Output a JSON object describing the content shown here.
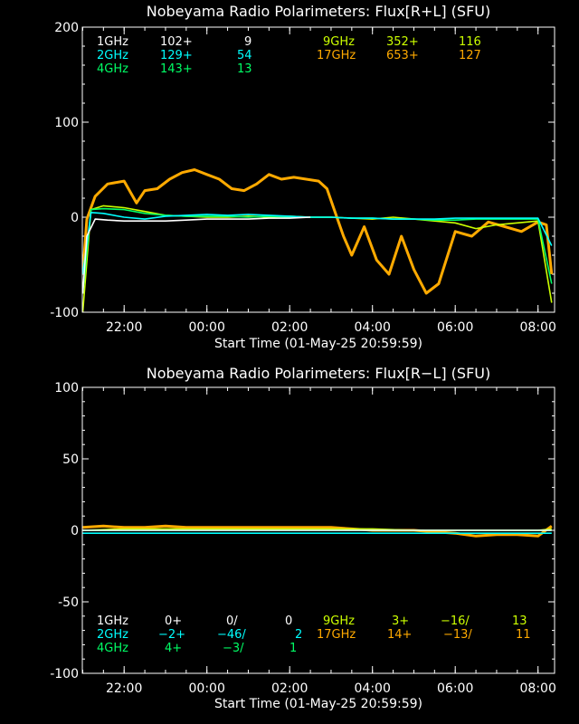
{
  "colors": {
    "1GHz": "#ffffff",
    "2GHz": "#00ffff",
    "4GHz": "#00ff66",
    "9GHz": "#ccff00",
    "17GHz": "#ffaa00",
    "axes": "#ffffff",
    "background": "#000000"
  },
  "chart_data": [
    {
      "type": "line",
      "title": "Nobeyama Radio Polarimeters: Flux[R+L] (SFU)",
      "xlabel": "Start Time (01-May-25 20:59:59)",
      "ylabel": "",
      "x_unit": "hours since 00:00 01-May-25",
      "xlim": [
        20.99,
        32.4
      ],
      "ylim": [
        -100,
        200
      ],
      "yticks": [
        "-100",
        "0",
        "100",
        "200"
      ],
      "yticks_values": [
        -100,
        0,
        100,
        200
      ],
      "xticks": [
        "22:00",
        "00:00",
        "02:00",
        "04:00",
        "06:00",
        "08:00"
      ],
      "xticks_values": [
        22,
        24,
        26,
        28,
        30,
        32
      ],
      "legend_rows": [
        {
          "band": "1GHz",
          "base": "102+",
          "value": "9"
        },
        {
          "band": "2GHz",
          "base": "129+",
          "value": "54"
        },
        {
          "band": "4GHz",
          "base": "143+",
          "value": "13"
        },
        {
          "band": "9GHz",
          "base": "352+",
          "value": "116"
        },
        {
          "band": "17GHz",
          "base": "653+",
          "value": "127"
        }
      ],
      "series": [
        {
          "name": "17GHz",
          "x": [
            21.0,
            21.1,
            21.3,
            21.6,
            22.0,
            22.3,
            22.5,
            22.8,
            23.1,
            23.4,
            23.7,
            24.0,
            24.3,
            24.6,
            24.9,
            25.2,
            25.5,
            25.8,
            26.1,
            26.4,
            26.7,
            26.9,
            27.1,
            27.3,
            27.5,
            27.8,
            28.1,
            28.4,
            28.7,
            29.0,
            29.3,
            29.6,
            30.0,
            30.4,
            30.8,
            31.2,
            31.6,
            32.0,
            32.2,
            32.33
          ],
          "y": [
            -60,
            -2,
            22,
            35,
            38,
            15,
            28,
            30,
            40,
            47,
            50,
            45,
            40,
            30,
            28,
            35,
            45,
            40,
            42,
            40,
            38,
            30,
            5,
            -20,
            -40,
            -10,
            -45,
            -60,
            -20,
            -55,
            -80,
            -70,
            -15,
            -20,
            -5,
            -10,
            -15,
            -5,
            -8,
            -60
          ]
        },
        {
          "name": "9GHz",
          "x": [
            21.0,
            21.2,
            21.5,
            22.0,
            22.5,
            23.0,
            23.5,
            24.0,
            24.5,
            25.0,
            25.5,
            26.0,
            26.5,
            27.0,
            27.5,
            28.0,
            28.5,
            29.0,
            29.5,
            30.0,
            30.5,
            31.0,
            31.5,
            32.0,
            32.33
          ],
          "y": [
            -100,
            8,
            12,
            10,
            6,
            2,
            1,
            0,
            0,
            1,
            0,
            1,
            0,
            0,
            -1,
            -2,
            0,
            -2,
            -4,
            -6,
            -12,
            -8,
            -6,
            -4,
            -90
          ]
        },
        {
          "name": "4GHz",
          "x": [
            21.0,
            21.2,
            21.5,
            22.0,
            22.5,
            23.0,
            23.5,
            24.0,
            24.5,
            25.0,
            25.5,
            26.0,
            26.5,
            27.0,
            27.5,
            28.0,
            28.5,
            29.0,
            29.5,
            30.0,
            30.5,
            31.0,
            31.5,
            32.0,
            32.33
          ],
          "y": [
            -80,
            8,
            9,
            8,
            4,
            2,
            1,
            1,
            1,
            0,
            1,
            0,
            0,
            0,
            -1,
            -1,
            -2,
            -2,
            -3,
            -3,
            -2,
            -2,
            -2,
            -2,
            -70
          ]
        },
        {
          "name": "2GHz",
          "x": [
            21.0,
            21.2,
            21.5,
            22.0,
            22.5,
            23.0,
            23.5,
            24.0,
            24.5,
            25.0,
            25.5,
            26.0,
            26.5,
            27.0,
            27.5,
            28.0,
            28.5,
            29.0,
            29.5,
            30.0,
            30.5,
            31.0,
            31.5,
            32.0,
            32.33
          ],
          "y": [
            -60,
            5,
            4,
            0,
            -2,
            1,
            2,
            3,
            2,
            3,
            2,
            1,
            0,
            0,
            -1,
            -1,
            -2,
            -2,
            -2,
            -1,
            -1,
            -1,
            -1,
            -1,
            -30
          ]
        },
        {
          "name": "1GHz",
          "x": [
            21.0,
            21.1,
            21.3,
            21.6,
            22.0,
            22.5,
            23.0,
            23.5,
            24.0,
            24.5,
            25.0,
            25.5,
            26.0,
            26.5
          ],
          "y": [
            -80,
            -20,
            -2,
            -3,
            -4,
            -4,
            -4,
            -3,
            -2,
            -2,
            -2,
            -1,
            -1,
            0
          ]
        }
      ]
    },
    {
      "type": "line",
      "title": "Nobeyama Radio Polarimeters: Flux[R−L] (SFU)",
      "xlabel": "Start Time (01-May-25 20:59:59)",
      "ylabel": "",
      "x_unit": "hours since 00:00 01-May-25",
      "xlim": [
        20.99,
        32.4
      ],
      "ylim": [
        -100,
        100
      ],
      "yticks": [
        "-100",
        "-50",
        "0",
        "50",
        "100"
      ],
      "yticks_values": [
        -100,
        -50,
        0,
        50,
        100
      ],
      "xticks": [
        "22:00",
        "00:00",
        "02:00",
        "04:00",
        "06:00",
        "08:00"
      ],
      "xticks_values": [
        22,
        24,
        26,
        28,
        30,
        32
      ],
      "legend_rows": [
        {
          "band": "1GHz",
          "a": "0+",
          "b": "0/",
          "c": "0"
        },
        {
          "band": "2GHz",
          "a": "−2+",
          "b": "−46/",
          "c": "2"
        },
        {
          "band": "4GHz",
          "a": "4+",
          "b": "−3/",
          "c": "1"
        },
        {
          "band": "9GHz",
          "a": "3+",
          "b": "−16/",
          "c": "13"
        },
        {
          "band": "17GHz",
          "a": "14+",
          "b": "−13/",
          "c": "11"
        }
      ],
      "series": [
        {
          "name": "17GHz",
          "x": [
            21.0,
            21.5,
            22.0,
            22.5,
            23.0,
            23.5,
            24.0,
            24.5,
            25.0,
            25.5,
            26.0,
            26.5,
            27.0,
            27.5,
            28.0,
            28.5,
            29.0,
            29.5,
            30.0,
            30.5,
            31.0,
            31.5,
            32.0,
            32.33
          ],
          "y": [
            2,
            3,
            2,
            2,
            3,
            2,
            2,
            2,
            2,
            2,
            2,
            2,
            2,
            1,
            0,
            0,
            0,
            -1,
            -2,
            -4,
            -3,
            -3,
            -4,
            3
          ]
        },
        {
          "name": "9GHz",
          "x": [
            21.0,
            22.0,
            23.0,
            24.0,
            25.0,
            26.0,
            27.0,
            28.0,
            29.0,
            30.0,
            31.0,
            32.0,
            32.33
          ],
          "y": [
            0,
            1,
            1,
            1,
            1,
            1,
            1,
            1,
            0,
            0,
            0,
            0,
            1
          ]
        },
        {
          "name": "4GHz",
          "x": [
            21.0,
            22.0,
            23.0,
            24.0,
            25.0,
            26.0,
            27.0,
            28.0,
            29.0,
            30.0,
            31.0,
            32.0,
            32.33
          ],
          "y": [
            0,
            0,
            0,
            0,
            0,
            0,
            0,
            0,
            0,
            0,
            0,
            0,
            0
          ]
        },
        {
          "name": "2GHz",
          "x": [
            21.0,
            22.0,
            23.0,
            24.0,
            25.0,
            26.0,
            27.0,
            28.0,
            29.0,
            30.0,
            31.0,
            32.0,
            32.33
          ],
          "y": [
            -2,
            -2,
            -2,
            -2,
            -2,
            -2,
            -2,
            -2,
            -2,
            -2,
            -2,
            -2,
            -2
          ]
        },
        {
          "name": "1GHz",
          "x": [
            21.0,
            22.0,
            23.0,
            24.0,
            25.0,
            26.0,
            27.0,
            28.0,
            29.0,
            30.0,
            31.0,
            32.0,
            32.33
          ],
          "y": [
            0,
            0,
            0,
            0,
            0,
            0,
            0,
            0,
            0,
            0,
            0,
            0,
            0
          ]
        }
      ]
    }
  ]
}
